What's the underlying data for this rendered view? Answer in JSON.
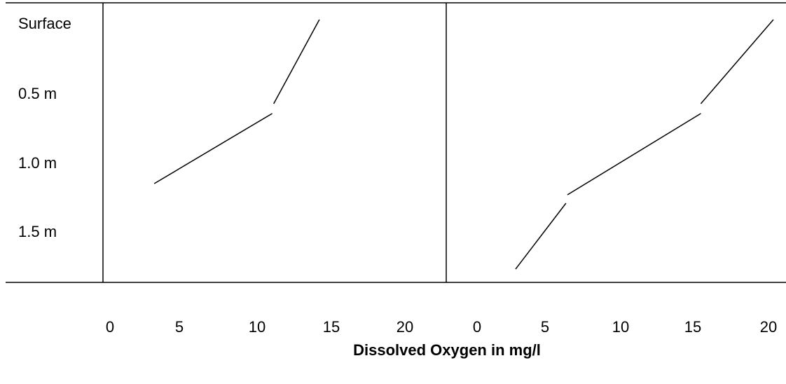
{
  "chart_data": {
    "type": "line",
    "title": "",
    "xlabel": "Dissolved Oxygen in mg/l",
    "ylabel": "",
    "depth_labels": [
      "Surface",
      "0.5 m",
      "1.0 m",
      "1.5 m"
    ],
    "grid": false,
    "legend": "none",
    "panels": [
      {
        "name": "",
        "xticks": [
          "0",
          "5",
          "10",
          "15",
          "20"
        ],
        "xlim": [
          0,
          20
        ],
        "segments": [
          {
            "points": [
              {
                "x": 14.2,
                "depth": 0.0
              },
              {
                "x": 11.1,
                "depth": 0.6
              }
            ]
          },
          {
            "points": [
              {
                "x": 11.0,
                "depth": 0.67
              },
              {
                "x": 3.0,
                "depth": 1.17
              }
            ]
          }
        ]
      },
      {
        "name": "",
        "xticks": [
          "0",
          "5",
          "10",
          "15",
          "20"
        ],
        "xlim": [
          0,
          20
        ],
        "segments": [
          {
            "points": [
              {
                "x": 20.0,
                "depth": 0.0
              },
              {
                "x": 15.1,
                "depth": 0.6
              }
            ]
          },
          {
            "points": [
              {
                "x": 15.1,
                "depth": 0.67
              },
              {
                "x": 6.1,
                "depth": 1.25
              }
            ]
          },
          {
            "points": [
              {
                "x": 6.0,
                "depth": 1.31
              },
              {
                "x": 2.6,
                "depth": 1.78
              }
            ]
          }
        ]
      }
    ]
  }
}
